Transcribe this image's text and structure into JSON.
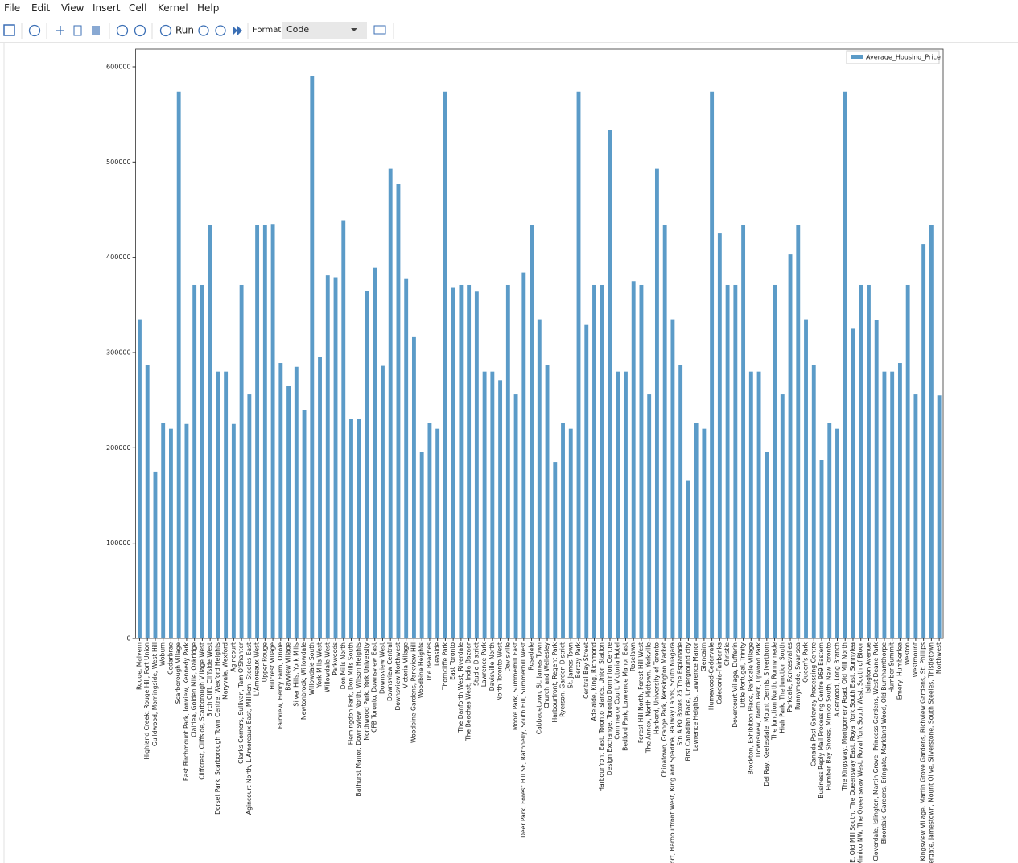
{
  "menu": [
    "File",
    "Edit",
    "View",
    "Insert",
    "Cell",
    "Kernel",
    "Help"
  ],
  "toolbar": {
    "run": "Run",
    "format_label": "Format",
    "cell_type": "Code"
  },
  "chart_data": {
    "type": "bar",
    "categories": [
      "Rouge, Malvern",
      "Highland Creek, Rouge Hill, Port Union",
      "Guildwood, Morningside, West Hill",
      "Woburn",
      "Cedarbrae",
      "Scarborough Village",
      "East Birchmount Park, Ionview, Kennedy Park",
      "Clairlea, Golden Mile, Oakridge",
      "Cliffcrest, Cliffside, Scarborough Village West",
      "Birch Cliff, Cliffside West",
      "Dorset Park, Scarborough Town Centre, Wexford Heights",
      "Maryvale, Wexford",
      "Agincourt",
      "Clarks Corners, Sullivan, Tam O'Shanter",
      "Agincourt North, L'Amoreaux East, Milliken, Steeles East",
      "L'Amoreaux West",
      "Upper Rouge",
      "Hillcrest Village",
      "Fairview, Henry Farm, Oriole",
      "Bayview Village",
      "Silver Hills, York Mills",
      "Newtonbrook, Willowdale",
      "Willowdale South",
      "York Mills West",
      "Willowdale West",
      "Parkwoods",
      "Don Mills North",
      "Flemingdon Park, Don Mills South",
      "Bathurst Manor, Downsview North, Wilson Heights",
      "Northwood Park, York University",
      "CFB Toronto, Downsview East",
      "Downsview West",
      "Downsview Central",
      "Downsview Northwest",
      "Victoria Village",
      "Woodbine Gardens, Parkview Hill",
      "Woodbine Heights",
      "The Beaches",
      "Leaside",
      "Thorncliffe Park",
      "East Toronto",
      "The Danforth West, Riverdale",
      "The Beaches West, India Bazaar",
      "Studio District",
      "Lawrence Park",
      "Davisville North",
      "North Toronto West",
      "Davisville",
      "Moore Park, Summerhill East",
      "Deer Park, Forest Hill SE, Rathnelly, South Hill, Summerhill West",
      "Rosedale",
      "Cabbagetown, St. James Town",
      "Church and Wellesley",
      "Harbourfront, Regent Park",
      "Ryerson, Garden District",
      "St. James Town",
      "Berczy Park",
      "Central Bay Street",
      "Adelaide, King, Richmond",
      "Harbourfront East, Toronto Islands, Union Station",
      "Design Exchange, Toronto Dominion Centre",
      "Commerce Court, Victoria Hotel",
      "Bedford Park, Lawrence Manor East",
      "Roselawn",
      "Forest Hill North, Forest Hill West",
      "The Annex, North Midtown, Yorkville",
      "Harbord, University of Toronto",
      "Chinatown, Grange Park, Kensington Market",
      "ort, Harbourfront West, King and Spadina, Railway Lands, South Niagara",
      "Stn A PO Boxes 25 The Esplanade",
      "First Canadian Place, Underground city",
      "Lawrence Heights, Lawrence Manor",
      "Glencairn",
      "Humewood-Cedarvale",
      "Caledonia-Fairbanks",
      "Christie",
      "Dovercourt Village, Dufferin",
      "Little Portugal, Trinity",
      "Brockton, Exhibition Place, Parkdale Village",
      "Downsview, North Park, Upwood Park",
      "Del Ray, Keelesdale, Mount Dennis, Silverthorn",
      "The Junction North, Runnymede",
      "High Park, The Junction South",
      "Parkdale, Roncesvalles",
      "Runnymede, Swansea",
      "Queen's Park",
      "Canada Post Gateway Processing Centre",
      "Business Reply Mail Processing Centre 969 Eastern",
      "Humber Bay Shores, Mimico South, New Toronto",
      "Alderwood, Long Branch",
      "The Kingsway, Montgomery Road, Old Mill North",
      "E, Old Mill South, The Queensway East, Royal York South East, Sunnylea",
      "Mimico NW, The Queensway West, Royal York South West, South of Bloor",
      "Islington Avenue",
      "Cloverdale, Islington, Martin Grove, Princess Gardens, West Deane Park",
      "Bloordale Gardens, Eringate, Markland Wood, Old Burnhamthorpe",
      "Humber Summit",
      "Emery, Humberlea",
      "Weston",
      "Westmount",
      "Kingsview Village, Martin Grove Gardens, Richview Gardens, St. Phillips",
      "ergate, Jamestown, Mount Olive, Silverstone, South Steeles, Thistletown",
      "Northwest"
    ],
    "series": [
      {
        "name": "Average_Housing_Price",
        "color": "#5b9bc8",
        "values": [
          335000,
          287000,
          175000,
          226000,
          220000,
          574000,
          225000,
          371000,
          371000,
          434000,
          280000,
          280000,
          225000,
          371000,
          256000,
          434000,
          434000,
          435000,
          289000,
          265000,
          285000,
          240000,
          590000,
          295000,
          381000,
          379000,
          439000,
          230000,
          230000,
          365000,
          389000,
          286000,
          493000,
          477000,
          378000,
          317000,
          196000,
          226000,
          220000,
          574000,
          368000,
          371000,
          371000,
          364000,
          280000,
          280000,
          271000,
          371000,
          256000,
          384000,
          434000,
          335000,
          287000,
          185000,
          226000,
          220000,
          574000,
          329000,
          371000,
          371000,
          534000,
          280000,
          280000,
          375000,
          371000,
          256000,
          493000,
          434000,
          335000,
          287000,
          166000,
          226000,
          220000,
          574000,
          425000,
          371000,
          371000,
          434000,
          280000,
          280000,
          196000,
          371000,
          256000,
          403000,
          434000,
          335000,
          287000,
          187000,
          226000,
          220000,
          574000,
          325000,
          371000,
          371000,
          334000,
          280000,
          280000,
          289000,
          371000,
          256000,
          414000,
          434000,
          255000
        ]
      }
    ],
    "ylim": [
      0,
      600000
    ],
    "yticks": [
      0,
      100000,
      200000,
      300000,
      400000,
      500000,
      600000
    ],
    "legend": "upper right"
  }
}
